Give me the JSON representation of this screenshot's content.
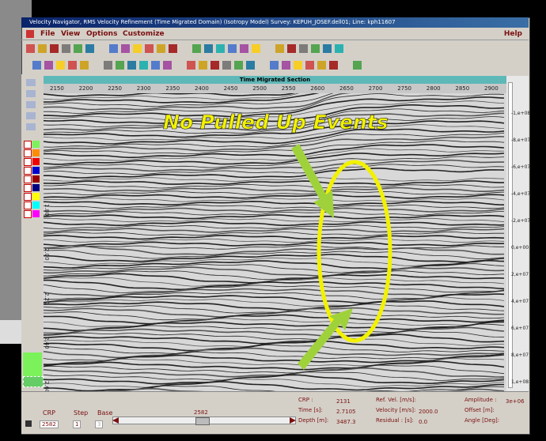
{
  "window": {
    "title": "Velocity Navigator, RMS Velocity Refinement (Time Migrated Domain) (Isotropy Model)  Survey: KEPUH_JOSEF.dell01; Line: kph11607",
    "menu": [
      "File",
      "View",
      "Options",
      "Customize"
    ],
    "help": "Help"
  },
  "section": {
    "title": "Time Migrated Section",
    "x_labels": [
      "2150",
      "2200",
      "2250",
      "2300",
      "2350",
      "2400",
      "2450",
      "2500",
      "2550",
      "2600",
      "2650",
      "2700",
      "2750",
      "2800",
      "2850",
      "2900"
    ],
    "y_labels": [
      "1.80",
      "2.00",
      "2.20",
      "2.40",
      "2.60"
    ]
  },
  "color_scale": [
    "-1,e+08",
    "-8,e+07",
    "-6,e+07",
    "-4,e+07",
    "-2,e+07",
    "0,e+00",
    "2,e+07",
    "4,e+07",
    "6,e+07",
    "8,e+07",
    "1,e+08"
  ],
  "annotation": "No Pulled Up Events",
  "controls": {
    "crp_label": "CRP",
    "crp_value": "2582",
    "step_label": "Step",
    "step_value": "1",
    "base_label": "Base",
    "base_value": "3",
    "slider_value": "2582"
  },
  "info": {
    "col1": [
      {
        "label": "CRP       :",
        "value": "2131"
      },
      {
        "label": "Time  [s]:",
        "value": "2.7105"
      },
      {
        "label": "Depth [m]:",
        "value": "3487.3"
      }
    ],
    "col2": [
      {
        "label": "Ref. Vel.  [m/s]:"
      },
      {
        "label": "Velocity  [m/s]:",
        "value": "2000.0"
      },
      {
        "label": "Residual : [s]:",
        "value": "0.0"
      }
    ],
    "col3": [
      {
        "label": "Amplitude :",
        "value": "3e+06"
      },
      {
        "label": "Offset [m]:"
      },
      {
        "label": "Angle [Deg]:"
      }
    ]
  }
}
